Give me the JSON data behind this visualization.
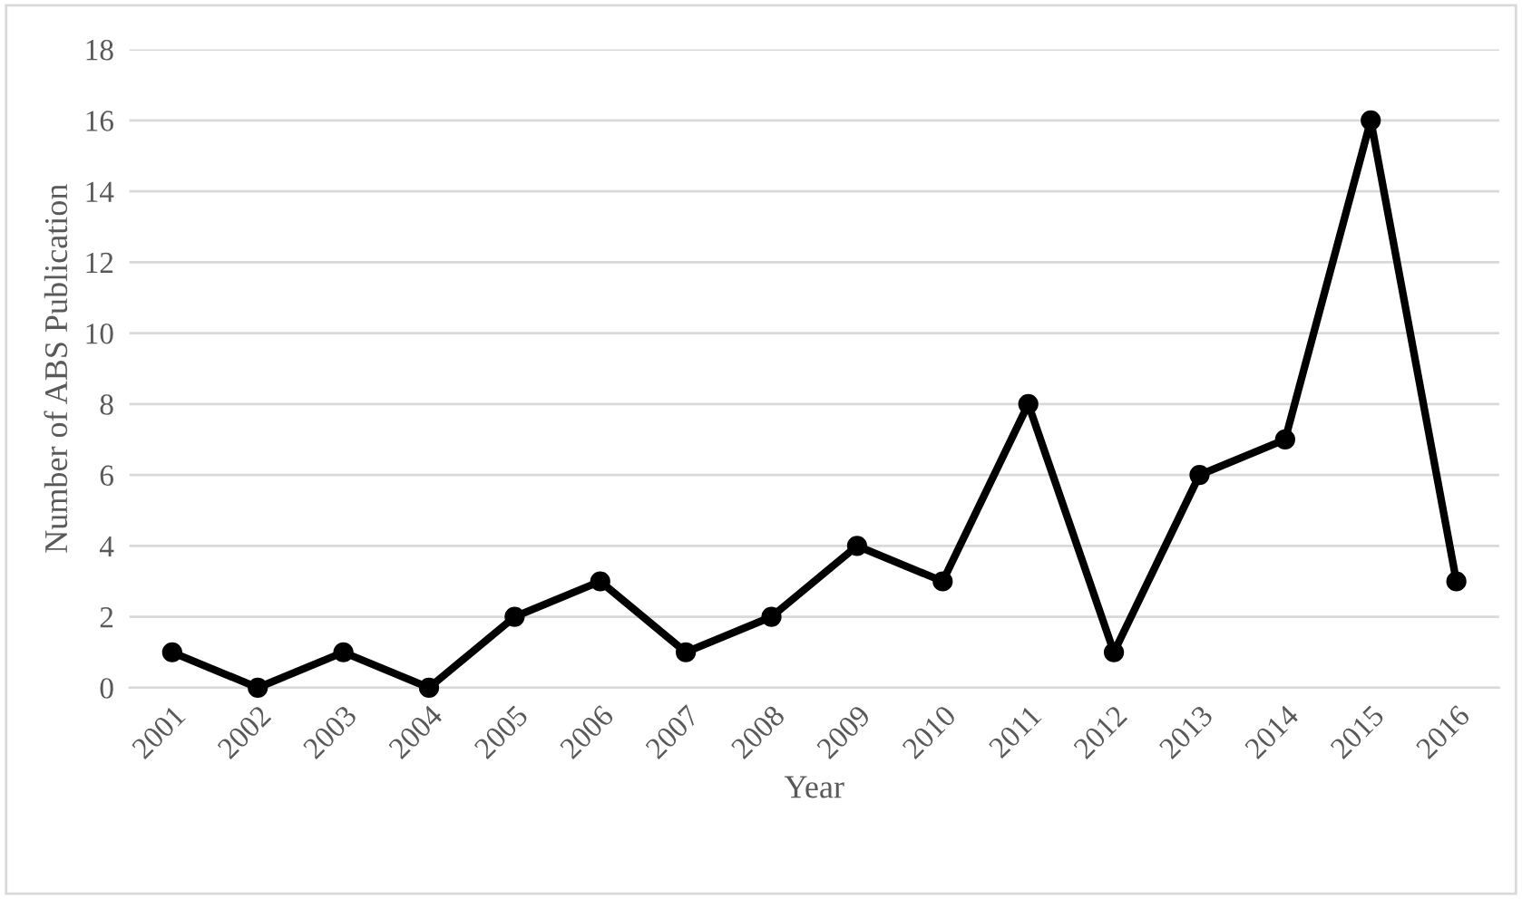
{
  "chart_data": {
    "type": "line",
    "xlabel": "Year",
    "ylabel": "Number of ABS Publication",
    "categories": [
      "2001",
      "2002",
      "2003",
      "2004",
      "2005",
      "2006",
      "2007",
      "2008",
      "2009",
      "2010",
      "2011",
      "2012",
      "2013",
      "2014",
      "2015",
      "2016"
    ],
    "series": [
      {
        "color": "#000000",
        "values": [
          1,
          0,
          1,
          0,
          2,
          3,
          1,
          2,
          4,
          3,
          8,
          1,
          6,
          7,
          16,
          3
        ]
      }
    ],
    "ylim": [
      0,
      18
    ],
    "yticks": [
      0,
      2,
      4,
      6,
      8,
      10,
      12,
      14,
      16,
      18
    ],
    "grid": "y",
    "marker": "circle",
    "line_style": "solid",
    "legend": false
  }
}
